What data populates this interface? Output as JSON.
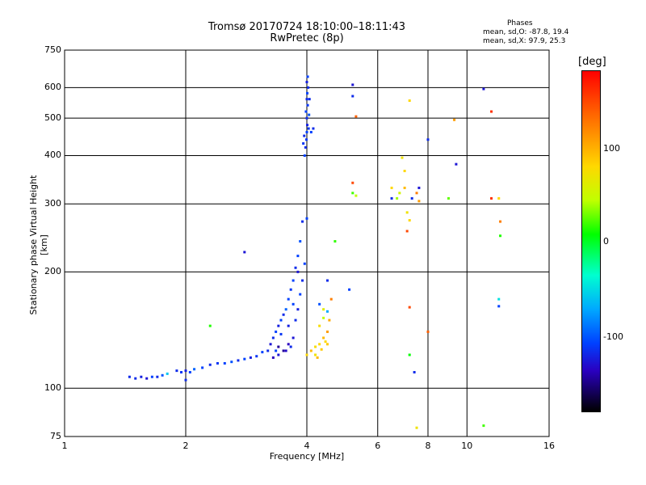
{
  "title_line1": "Tromsø 20170724 18:10:00–18:11:43",
  "title_line2": "RwPretec (8p)",
  "phases_header": "Phases",
  "phases_o": "mean, sd,O: -87.8, 19.4",
  "phases_x": "mean, sd,X:  97.9, 25.3",
  "colorbar_unit": "[deg]",
  "colorbar_ticks": [
    "100",
    "0",
    "-100"
  ],
  "chart_data": {
    "type": "scatter",
    "xlabel": "Frequency [MHz]",
    "ylabel": "Stationary phase Virtual Height [km]",
    "x_scale": "log",
    "y_scale": "log",
    "xlim": [
      1,
      16
    ],
    "ylim": [
      75,
      750
    ],
    "xticks": [
      "1",
      "2",
      "4",
      "6",
      "8",
      "10",
      "16"
    ],
    "yticks": [
      "75",
      "100",
      "200",
      "300",
      "400",
      "500",
      "600",
      "750"
    ],
    "grid": true,
    "colorbar": {
      "label": "[deg]",
      "range": [
        -180,
        180
      ],
      "ticks": [
        100,
        0,
        -100
      ]
    },
    "series": [
      {
        "points": [
          [
            1.45,
            107,
            -110
          ],
          [
            1.5,
            106,
            -110
          ],
          [
            1.55,
            107,
            -115
          ],
          [
            1.6,
            106,
            -120
          ],
          [
            1.65,
            107,
            -100
          ],
          [
            1.7,
            107,
            -110
          ],
          [
            1.75,
            108,
            -95
          ],
          [
            1.8,
            109,
            -60
          ],
          [
            1.9,
            111,
            -110
          ],
          [
            1.95,
            110,
            -105
          ],
          [
            2.0,
            111,
            -115
          ],
          [
            2.05,
            110,
            -100
          ],
          [
            2.1,
            112,
            -90
          ],
          [
            2.2,
            113,
            -100
          ],
          [
            2.3,
            115,
            -110
          ],
          [
            2.4,
            116,
            -105
          ],
          [
            2.5,
            116,
            -100
          ],
          [
            2.6,
            117,
            -95
          ],
          [
            2.7,
            118,
            -110
          ],
          [
            2.8,
            119,
            -100
          ],
          [
            2.9,
            120,
            -115
          ],
          [
            3.0,
            121,
            -105
          ],
          [
            3.1,
            124,
            -100
          ],
          [
            3.2,
            125,
            -110
          ],
          [
            3.25,
            130,
            -120
          ],
          [
            3.3,
            135,
            -110
          ],
          [
            3.35,
            140,
            -100
          ],
          [
            3.4,
            145,
            -115
          ],
          [
            3.45,
            150,
            -100
          ],
          [
            3.5,
            155,
            -110
          ],
          [
            3.55,
            160,
            -90
          ],
          [
            3.6,
            170,
            -100
          ],
          [
            3.65,
            180,
            -105
          ],
          [
            3.7,
            190,
            -100
          ],
          [
            3.75,
            205,
            -110
          ],
          [
            3.8,
            220,
            -100
          ],
          [
            3.85,
            240,
            -95
          ],
          [
            3.9,
            270,
            -110
          ],
          [
            3.3,
            120,
            -130
          ],
          [
            3.4,
            122,
            -120
          ],
          [
            3.5,
            125,
            -140
          ],
          [
            3.6,
            130,
            -130
          ],
          [
            3.7,
            135,
            -120
          ],
          [
            3.75,
            150,
            -110
          ],
          [
            3.8,
            160,
            -115
          ],
          [
            3.85,
            175,
            -100
          ],
          [
            3.9,
            190,
            -110
          ],
          [
            3.95,
            210,
            -100
          ],
          [
            3.55,
            125,
            -125
          ],
          [
            3.65,
            128,
            -110
          ],
          [
            3.45,
            138,
            -105
          ],
          [
            3.6,
            145,
            -115
          ],
          [
            3.7,
            165,
            -100
          ],
          [
            3.8,
            200,
            -120
          ],
          [
            3.4,
            128,
            -140
          ],
          [
            3.35,
            125,
            -100
          ],
          [
            3.95,
            400,
            -100
          ],
          [
            3.97,
            420,
            -110
          ],
          [
            3.99,
            440,
            -105
          ],
          [
            4.0,
            460,
            -100
          ],
          [
            4.01,
            480,
            -115
          ],
          [
            4.0,
            500,
            -110
          ],
          [
            3.98,
            520,
            -100
          ],
          [
            4.02,
            540,
            -105
          ],
          [
            4.0,
            560,
            -110
          ],
          [
            4.01,
            580,
            -100
          ],
          [
            4.03,
            600,
            -110
          ],
          [
            4.0,
            620,
            -115
          ],
          [
            4.02,
            640,
            -100
          ],
          [
            4.04,
            470,
            -105
          ],
          [
            3.94,
            450,
            -110
          ],
          [
            4.05,
            510,
            -95
          ],
          [
            4.1,
            460,
            -100
          ],
          [
            4.15,
            470,
            -110
          ],
          [
            3.92,
            430,
            -105
          ],
          [
            4.06,
            560,
            -110
          ],
          [
            4.0,
            122,
            100
          ],
          [
            4.1,
            125,
            110
          ],
          [
            4.2,
            128,
            95
          ],
          [
            4.3,
            130,
            100
          ],
          [
            4.4,
            135,
            110
          ],
          [
            4.5,
            140,
            120
          ],
          [
            4.2,
            122,
            90
          ],
          [
            4.35,
            126,
            105
          ],
          [
            4.45,
            132,
            100
          ],
          [
            4.55,
            150,
            115
          ],
          [
            4.3,
            145,
            95
          ],
          [
            4.5,
            130,
            105
          ],
          [
            4.25,
            120,
            110
          ],
          [
            4.4,
            160,
            80
          ],
          [
            4.6,
            170,
            130
          ],
          [
            4.5,
            158,
            -70
          ],
          [
            4.3,
            165,
            -95
          ],
          [
            4.4,
            152,
            60
          ],
          [
            2.3,
            145,
            10
          ],
          [
            2.0,
            105,
            -110
          ],
          [
            2.8,
            225,
            -120
          ],
          [
            4.0,
            275,
            -100
          ],
          [
            4.5,
            190,
            -110
          ],
          [
            4.7,
            240,
            15
          ],
          [
            5.1,
            180,
            -100
          ],
          [
            5.2,
            610,
            -120
          ],
          [
            5.2,
            570,
            -110
          ],
          [
            5.3,
            505,
            140
          ],
          [
            5.2,
            340,
            150
          ],
          [
            5.2,
            320,
            20
          ],
          [
            5.3,
            315,
            60
          ],
          [
            6.5,
            310,
            -110
          ],
          [
            6.7,
            310,
            50
          ],
          [
            6.8,
            320,
            70
          ],
          [
            7.0,
            330,
            110
          ],
          [
            6.9,
            395,
            90
          ],
          [
            7.0,
            365,
            100
          ],
          [
            7.1,
            285,
            90
          ],
          [
            7.2,
            272,
            100
          ],
          [
            7.1,
            255,
            150
          ],
          [
            7.3,
            310,
            -110
          ],
          [
            7.5,
            320,
            130
          ],
          [
            7.6,
            305,
            120
          ],
          [
            7.6,
            330,
            -120
          ],
          [
            7.2,
            555,
            100
          ],
          [
            7.2,
            162,
            150
          ],
          [
            7.2,
            122,
            0
          ],
          [
            7.4,
            110,
            -110
          ],
          [
            7.5,
            79,
            90
          ],
          [
            8.0,
            140,
            140
          ],
          [
            8.0,
            440,
            -110
          ],
          [
            9.0,
            310,
            30
          ],
          [
            9.3,
            495,
            120
          ],
          [
            9.4,
            380,
            -120
          ],
          [
            11.0,
            595,
            -120
          ],
          [
            11.0,
            80,
            20
          ],
          [
            11.5,
            520,
            160
          ],
          [
            11.5,
            310,
            160
          ],
          [
            12.0,
            310,
            100
          ],
          [
            12.1,
            270,
            130
          ],
          [
            12.1,
            248,
            10
          ],
          [
            12.0,
            170,
            -50
          ],
          [
            12.0,
            163,
            -100
          ],
          [
            6.5,
            330,
            100
          ]
        ]
      }
    ]
  }
}
